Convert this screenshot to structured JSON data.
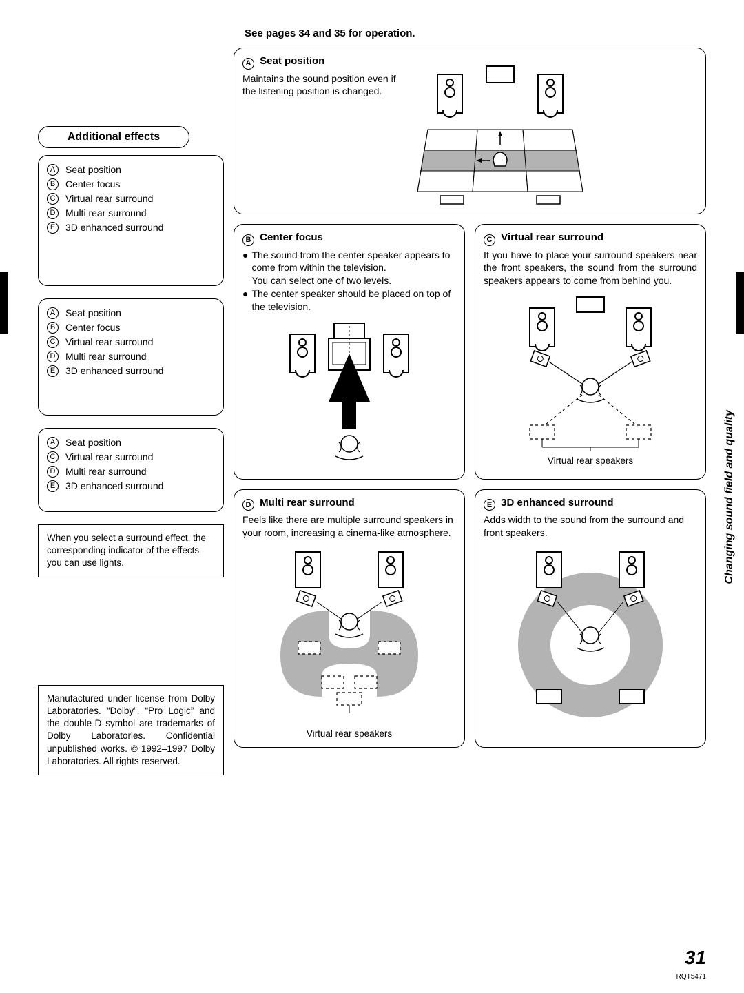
{
  "top_note": "See pages 34 and 35 for operation.",
  "sidebar": {
    "header": "Additional effects",
    "list1": [
      {
        "letter": "A",
        "label": "Seat position"
      },
      {
        "letter": "B",
        "label": "Center focus"
      },
      {
        "letter": "C",
        "label": "Virtual rear surround"
      },
      {
        "letter": "D",
        "label": "Multi rear surround"
      },
      {
        "letter": "E",
        "label": "3D enhanced surround"
      }
    ],
    "list2": [
      {
        "letter": "A",
        "label": "Seat position"
      },
      {
        "letter": "B",
        "label": "Center focus"
      },
      {
        "letter": "C",
        "label": "Virtual rear surround"
      },
      {
        "letter": "D",
        "label": "Multi rear surround"
      },
      {
        "letter": "E",
        "label": "3D enhanced surround"
      }
    ],
    "list3": [
      {
        "letter": "A",
        "label": "Seat position"
      },
      {
        "letter": "C",
        "label": "Virtual rear surround"
      },
      {
        "letter": "D",
        "label": "Multi rear surround"
      },
      {
        "letter": "E",
        "label": "3D enhanced surround"
      }
    ],
    "note": "When you select a surround effect, the corresponding indicator of the effects you can use lights.",
    "dolby": "Manufactured under license from Dolby Laboratories. “Dolby”, “Pro Logic” and the double-D symbol are trademarks of Dolby Laboratories. Confidential unpublished works. © 1992–1997 Dolby Laboratories. All rights reserved."
  },
  "sections": {
    "A": {
      "title": "Seat position",
      "desc": "Maintains the sound position even if the listening position is changed."
    },
    "B": {
      "title": "Center focus",
      "b1": "The sound from the center speaker appears to come from within the television.",
      "b1b": "You can select one of two levels.",
      "b2": "The center speaker should be placed on top of the television."
    },
    "C": {
      "title": "Virtual rear surround",
      "desc": "If you have to place your surround speakers near the front speakers, the sound from the surround speakers appears to come from behind you.",
      "caption": "Virtual rear speakers"
    },
    "D": {
      "title": "Multi rear surround",
      "desc": "Feels like there are multiple surround speakers in your room, increasing a cinema-like atmosphere.",
      "caption": "Virtual rear speakers"
    },
    "E": {
      "title": "3D enhanced surround",
      "desc": "Adds width to the sound from the surround and front speakers."
    }
  },
  "side_tab": "Changing sound field and quality",
  "page_number": "31",
  "doc_code": "RQT5471",
  "style": {
    "border_color": "#000000",
    "text_color": "#000000",
    "background": "#ffffff",
    "shade": "#b3b3b3",
    "border_radius": 14
  }
}
